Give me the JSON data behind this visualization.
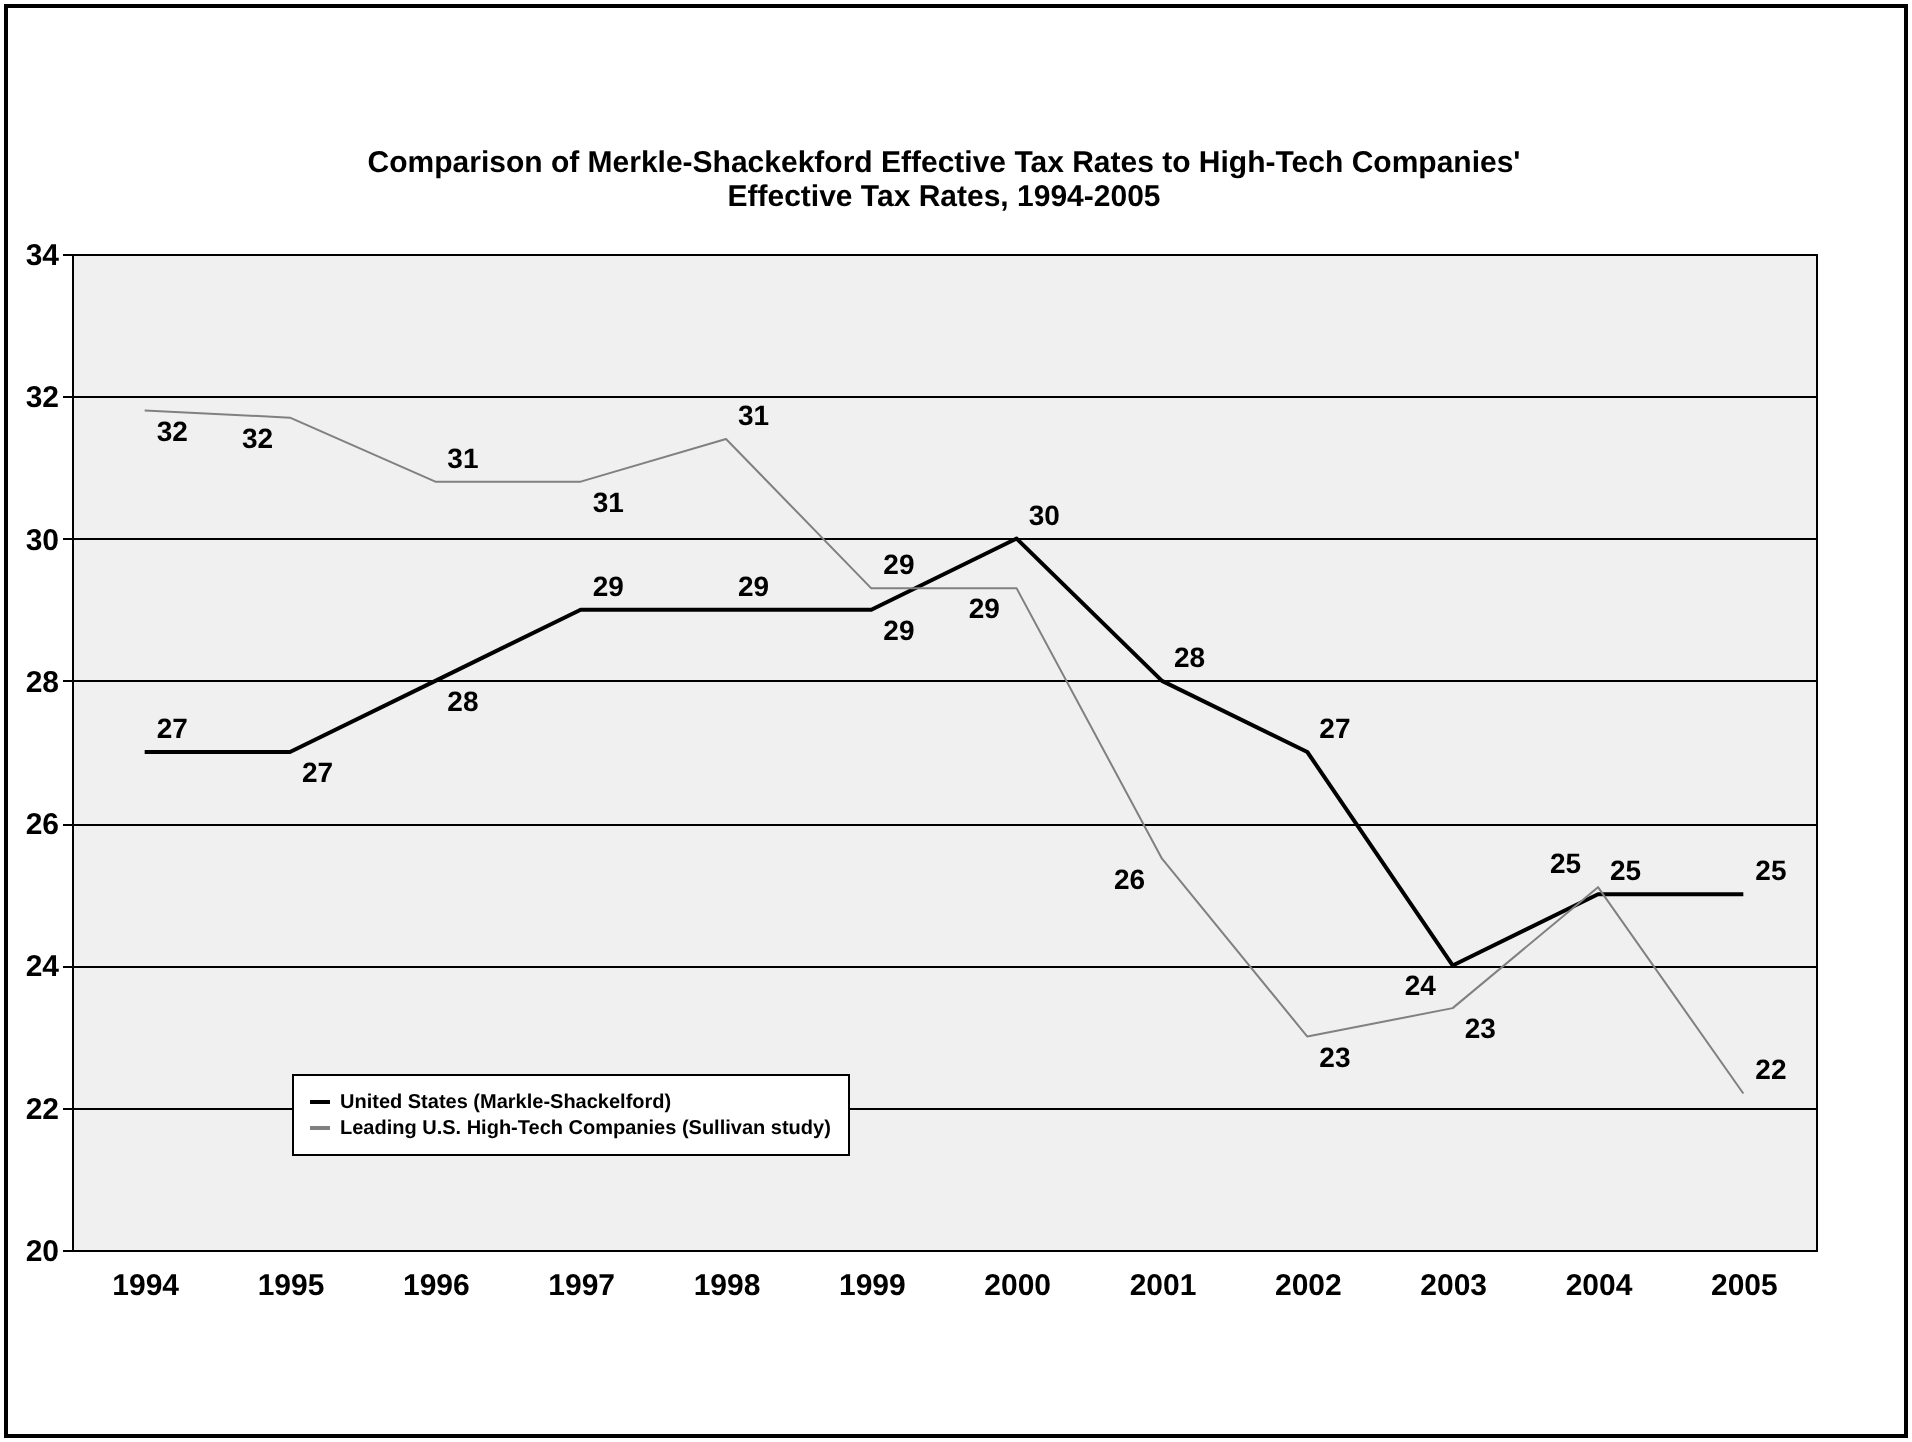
{
  "chart_data": {
    "type": "line",
    "title": "Comparison of Merkle-Shackekford Effective Tax Rates to High-Tech Companies' Effective Tax Rates, 1994-2005",
    "categories": [
      "1994",
      "1995",
      "1996",
      "1997",
      "1998",
      "1999",
      "2000",
      "2001",
      "2002",
      "2003",
      "2004",
      "2005"
    ],
    "series": [
      {
        "name": "United States (Markle-Shackelford)",
        "color": "#000000",
        "values": [
          27,
          27,
          28,
          29,
          29,
          29,
          30,
          28,
          27,
          24,
          25,
          25
        ],
        "value_labels": [
          "27",
          "27",
          "28",
          "29",
          "29",
          "29",
          "30",
          "28",
          "27",
          "24",
          "25",
          "25"
        ]
      },
      {
        "name": "Leading U.S. High-Tech Companies (Sullivan study)",
        "color": "#808080",
        "values": [
          31.8,
          31.7,
          30.8,
          30.8,
          31.4,
          29.3,
          29.3,
          25.5,
          23.0,
          23.4,
          25.1,
          22.2
        ],
        "value_labels": [
          "32",
          "32",
          "31",
          "31",
          "31",
          "29",
          "29",
          "26",
          "23",
          "23",
          "25",
          "22"
        ]
      }
    ],
    "ylim": [
      20,
      34
    ],
    "yticks": [
      20,
      22,
      24,
      26,
      28,
      30,
      32,
      34
    ],
    "grid": "y",
    "legend": "bottom left"
  }
}
